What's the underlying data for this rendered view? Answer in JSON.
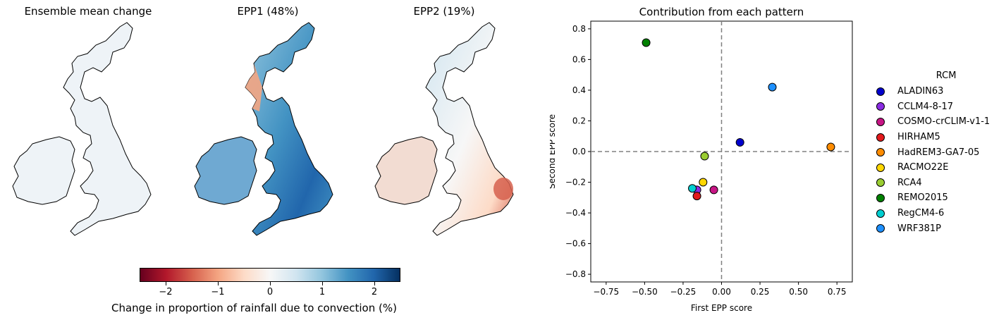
{
  "maps": [
    {
      "title": "Ensemble mean change"
    },
    {
      "title": "EPP1 (48%)"
    },
    {
      "title": "EPP2 (19%)"
    }
  ],
  "colorbar": {
    "label": "Change in proportion of rainfall due to convection (%)",
    "ticks": [
      "−2",
      "−1",
      "0",
      "1",
      "2"
    ],
    "range": [
      -2.5,
      2.5
    ],
    "colormap": "RdBu"
  },
  "chart_data": {
    "type": "scatter",
    "title": "Contribution from each pattern",
    "xlabel": "First EPP score",
    "ylabel": "Second EPP score",
    "xlim": [
      -0.85,
      0.85
    ],
    "ylim": [
      -0.85,
      0.85
    ],
    "xticks": [
      "−0.75",
      "−0.50",
      "−0.25",
      "0.00",
      "0.25",
      "0.50",
      "0.75"
    ],
    "yticks": [
      "−0.8",
      "−0.6",
      "−0.4",
      "−0.2",
      "0.0",
      "0.2",
      "0.4",
      "0.6",
      "0.8"
    ],
    "legend_title": "RCM",
    "legend_position": "right",
    "reference_lines": {
      "x": 0,
      "y": 0,
      "style": "dashed"
    },
    "series": [
      {
        "name": "ALADIN63",
        "color": "#0000cd",
        "x": 0.12,
        "y": 0.06
      },
      {
        "name": "CCLM4-8-17",
        "color": "#8a2be2",
        "x": -0.16,
        "y": -0.25
      },
      {
        "name": "COSMO-crCLIM-v1-1",
        "color": "#c71585",
        "x": -0.05,
        "y": -0.25
      },
      {
        "name": "HIRHAM5",
        "color": "#e31a1c",
        "x": -0.16,
        "y": -0.29
      },
      {
        "name": "HadREM3-GA7-05",
        "color": "#ff8c00",
        "x": 0.71,
        "y": 0.03
      },
      {
        "name": "RACMO22E",
        "color": "#ffd700",
        "x": -0.12,
        "y": -0.2
      },
      {
        "name": "RCA4",
        "color": "#9acd32",
        "x": -0.11,
        "y": -0.03
      },
      {
        "name": "REMO2015",
        "color": "#008000",
        "x": -0.49,
        "y": 0.71
      },
      {
        "name": "RegCM4-6",
        "color": "#00ced1",
        "x": -0.19,
        "y": -0.24
      },
      {
        "name": "WRF381P",
        "color": "#1e90ff",
        "x": 0.33,
        "y": 0.42
      }
    ]
  }
}
